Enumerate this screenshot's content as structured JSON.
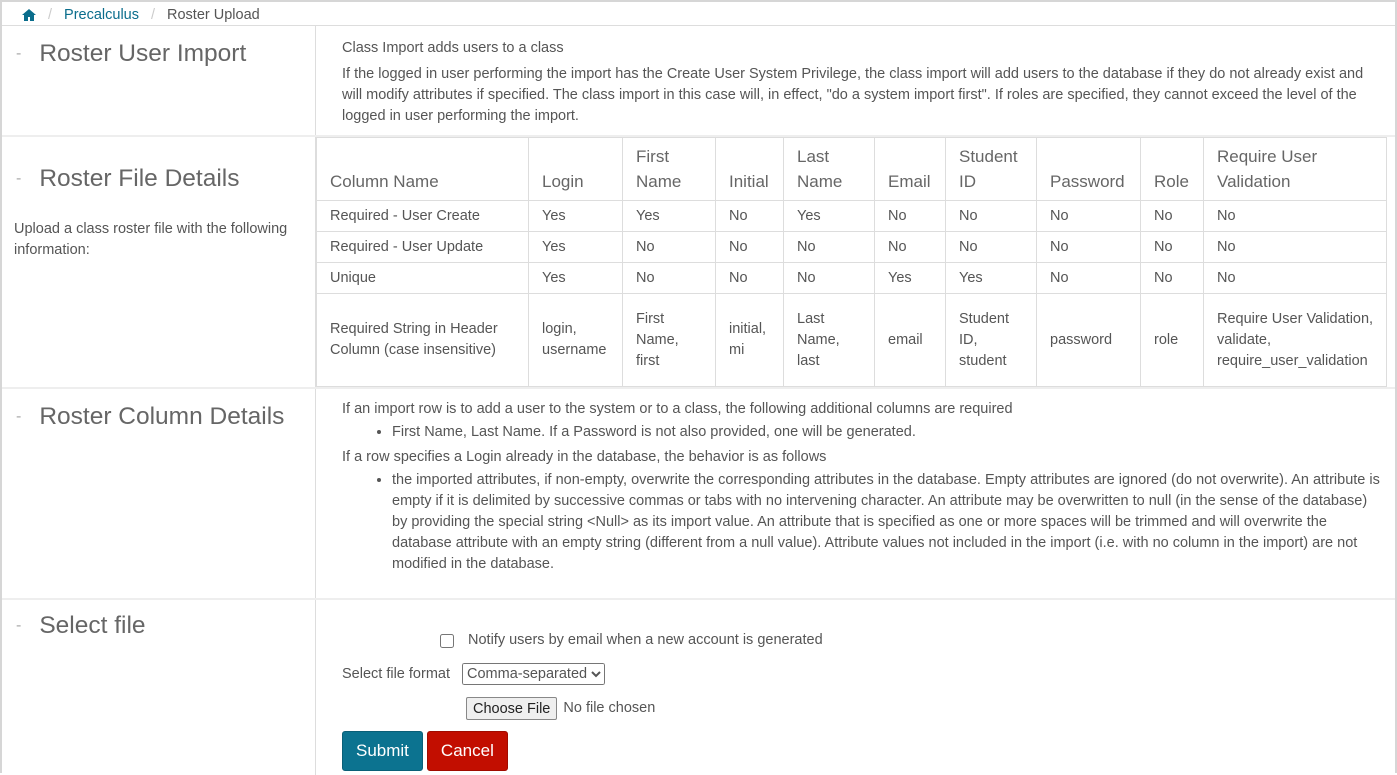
{
  "breadcrumb": {
    "home_icon": "home-icon",
    "items": [
      "Precalculus",
      "Roster Upload"
    ]
  },
  "import": {
    "title": "Roster User Import",
    "intro": "Class Import adds users to a class",
    "body": "If the logged in user performing the import has the Create User System Privilege, the class import will add users to the database if they do not already exist and will modify attributes if specified. The class import in this case will, in effect, \"do a system import first\". If roles are specified, they cannot exceed the level of the logged in user performing the import."
  },
  "file_details": {
    "title": "Roster File Details",
    "description": "Upload a class roster file with the following information:",
    "headers": [
      "Column Name",
      "Login",
      "First Name",
      "Initial",
      "Last Name",
      "Email",
      "Student ID",
      "Password",
      "Role",
      "Require User Validation"
    ],
    "rows": [
      [
        "Required - User Create",
        "Yes",
        "Yes",
        "No",
        "Yes",
        "No",
        "No",
        "No",
        "No",
        "No"
      ],
      [
        "Required - User Update",
        "Yes",
        "No",
        "No",
        "No",
        "No",
        "No",
        "No",
        "No",
        "No"
      ],
      [
        "Unique",
        "Yes",
        "No",
        "No",
        "No",
        "Yes",
        "Yes",
        "No",
        "No",
        "No"
      ],
      [
        "Required String in Header Column (case insensitive)",
        "login, username",
        "First Name, first",
        "initial, mi",
        "Last Name, last",
        "email",
        "Student ID, student",
        "password",
        "role",
        "Require User Validation, validate, require_user_validation"
      ]
    ]
  },
  "column_details": {
    "title": "Roster Column Details",
    "p1": "If an import row is to add a user to the system or to a class, the following additional columns are required",
    "b1": "First Name, Last Name. If a Password is not also provided, one will be generated.",
    "p2": "If a row specifies a Login already in the database, the behavior is as follows",
    "b2": "the imported attributes, if non-empty, overwrite the corresponding attributes in the database. Empty attributes are ignored (do not overwrite). An attribute is empty if it is delimited by successive commas or tabs with no intervening character. An attribute may be overwritten to null (in the sense of the database) by providing the special string <Null> as its import value. An attribute that is specified as one or more spaces will be trimmed and will overwrite the database attribute with an empty string (different from a null value). Attribute values not included in the import (i.e. with no column in the import) are not modified in the database."
  },
  "select_file": {
    "title": "Select file",
    "notify_label": "Notify users by email when a new account is generated",
    "notify_checked": false,
    "format_label": "Select file format",
    "format_value": "Comma-separated",
    "choose_file": "Choose File",
    "no_file": "No file chosen",
    "submit": "Submit",
    "cancel": "Cancel"
  },
  "colors": {
    "link": "#0a6d8c",
    "submit": "#0c7390",
    "cancel": "#c20e00"
  }
}
